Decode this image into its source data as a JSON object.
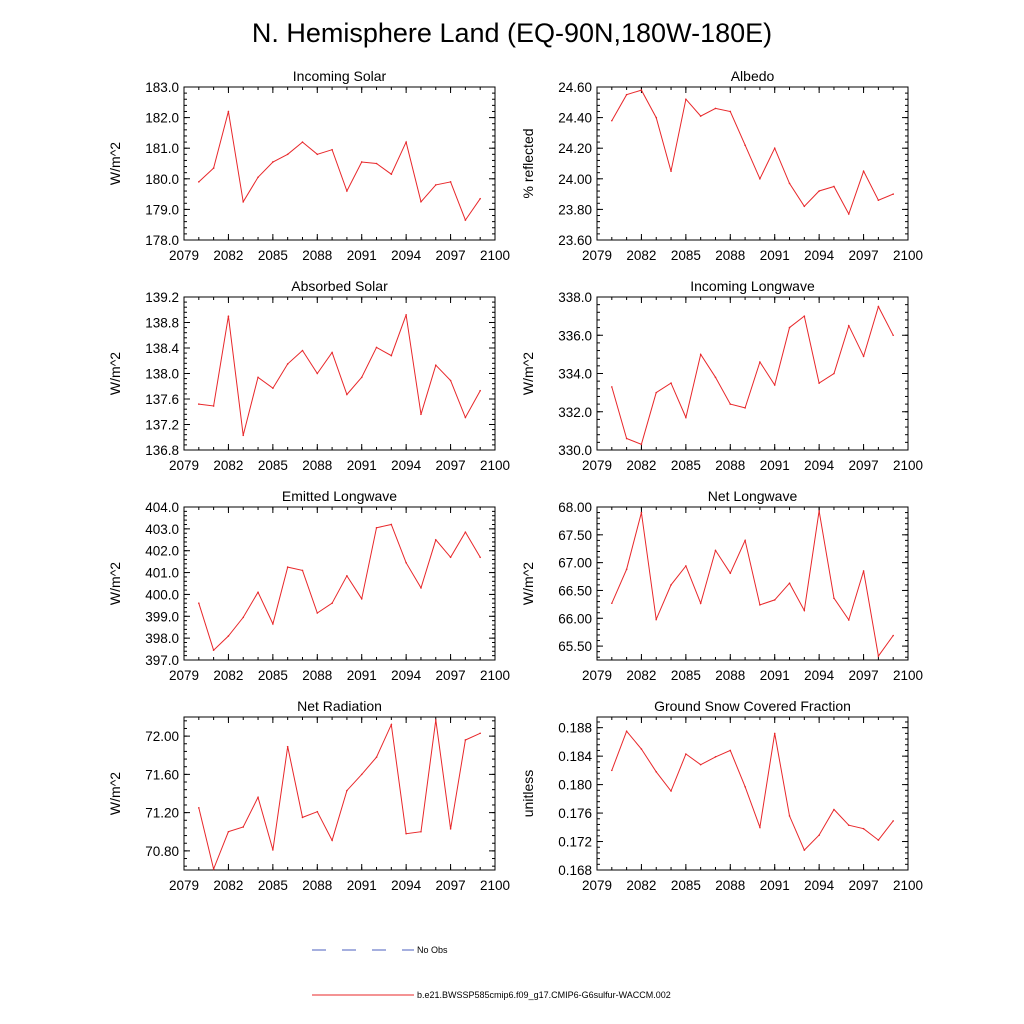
{
  "title": "N. Hemisphere Land (EQ-90N,180W-180E)",
  "legend": {
    "no_obs_label": "No Obs",
    "no_obs_color": "#4b5fbf",
    "model_label": "b.e21.BWSSP585cmip6.f09_g17.CMIP6-G6sulfur-WACCM.002",
    "model_color": "#e8272a"
  },
  "chart_data": [
    {
      "type": "line",
      "title": "Incoming Solar",
      "ylabel": "W/m^2",
      "x": [
        2080,
        2081,
        2082,
        2083,
        2084,
        2085,
        2086,
        2087,
        2088,
        2089,
        2090,
        2091,
        2092,
        2093,
        2094,
        2095,
        2096,
        2097,
        2098,
        2099
      ],
      "values": [
        179.9,
        180.35,
        182.2,
        179.25,
        180.05,
        180.55,
        180.8,
        181.2,
        180.8,
        180.95,
        179.6,
        180.55,
        180.5,
        180.15,
        181.2,
        179.25,
        179.8,
        179.9,
        178.65,
        179.35
      ],
      "xlim": [
        2079,
        2100
      ],
      "xticks": [
        "2079",
        "2082",
        "2085",
        "2088",
        "2091",
        "2094",
        "2097",
        "2100"
      ],
      "ylim": [
        178.0,
        183.0
      ],
      "yticks": [
        "178.0",
        "179.0",
        "180.0",
        "181.0",
        "182.0",
        "183.0"
      ],
      "color": "#e8272a"
    },
    {
      "type": "line",
      "title": "Albedo",
      "ylabel": "% reflected",
      "x": [
        2080,
        2081,
        2082,
        2083,
        2084,
        2085,
        2086,
        2087,
        2088,
        2089,
        2090,
        2091,
        2092,
        2093,
        2094,
        2095,
        2096,
        2097,
        2098,
        2099
      ],
      "values": [
        24.38,
        24.55,
        24.58,
        24.4,
        24.05,
        24.52,
        24.41,
        24.46,
        24.44,
        24.22,
        24.0,
        24.2,
        23.97,
        23.82,
        23.92,
        23.95,
        23.77,
        24.05,
        23.86,
        23.9
      ],
      "xlim": [
        2079,
        2100
      ],
      "xticks": [
        "2079",
        "2082",
        "2085",
        "2088",
        "2091",
        "2094",
        "2097",
        "2100"
      ],
      "ylim": [
        23.6,
        24.6
      ],
      "yticks": [
        "23.60",
        "23.80",
        "24.00",
        "24.20",
        "24.40",
        "24.60"
      ],
      "color": "#e8272a"
    },
    {
      "type": "line",
      "title": "Absorbed Solar",
      "ylabel": "W/m^2",
      "x": [
        2080,
        2081,
        2082,
        2083,
        2084,
        2085,
        2086,
        2087,
        2088,
        2089,
        2090,
        2091,
        2092,
        2093,
        2094,
        2095,
        2096,
        2097,
        2098,
        2099
      ],
      "values": [
        137.52,
        137.49,
        138.9,
        137.03,
        137.94,
        137.77,
        138.15,
        138.36,
        138.0,
        138.33,
        137.67,
        137.94,
        138.41,
        138.28,
        138.92,
        137.36,
        138.13,
        137.89,
        137.31,
        137.73
      ],
      "xlim": [
        2079,
        2100
      ],
      "xticks": [
        "2079",
        "2082",
        "2085",
        "2088",
        "2091",
        "2094",
        "2097",
        "2100"
      ],
      "ylim": [
        136.8,
        139.2
      ],
      "yticks": [
        "136.8",
        "137.2",
        "137.6",
        "138.0",
        "138.4",
        "138.8",
        "139.2"
      ],
      "color": "#e8272a"
    },
    {
      "type": "line",
      "title": "Incoming Longwave",
      "ylabel": "W/m^2",
      "x": [
        2080,
        2081,
        2082,
        2083,
        2084,
        2085,
        2086,
        2087,
        2088,
        2089,
        2090,
        2091,
        2092,
        2093,
        2094,
        2095,
        2096,
        2097,
        2098,
        2099
      ],
      "values": [
        333.3,
        330.6,
        330.3,
        333.0,
        333.5,
        331.7,
        335.0,
        333.8,
        332.4,
        332.2,
        334.6,
        333.4,
        336.4,
        337.0,
        333.5,
        334.0,
        336.5,
        334.9,
        337.5,
        336.0
      ],
      "xlim": [
        2079,
        2100
      ],
      "xticks": [
        "2079",
        "2082",
        "2085",
        "2088",
        "2091",
        "2094",
        "2097",
        "2100"
      ],
      "ylim": [
        330.0,
        338.0
      ],
      "yticks": [
        "330.0",
        "332.0",
        "334.0",
        "336.0",
        "338.0"
      ],
      "color": "#e8272a"
    },
    {
      "type": "line",
      "title": "Emitted Longwave",
      "ylabel": "W/m^2",
      "x": [
        2080,
        2081,
        2082,
        2083,
        2084,
        2085,
        2086,
        2087,
        2088,
        2089,
        2090,
        2091,
        2092,
        2093,
        2094,
        2095,
        2096,
        2097,
        2098,
        2099
      ],
      "values": [
        399.6,
        397.45,
        398.1,
        398.95,
        400.1,
        398.65,
        401.25,
        401.1,
        399.15,
        399.6,
        400.85,
        399.8,
        403.05,
        403.2,
        401.45,
        400.3,
        402.5,
        401.7,
        402.85,
        401.7
      ],
      "xlim": [
        2079,
        2100
      ],
      "xticks": [
        "2079",
        "2082",
        "2085",
        "2088",
        "2091",
        "2094",
        "2097",
        "2100"
      ],
      "ylim": [
        397.0,
        404.0
      ],
      "yticks": [
        "397.0",
        "398.0",
        "399.0",
        "400.0",
        "401.0",
        "402.0",
        "403.0",
        "404.0"
      ],
      "color": "#e8272a"
    },
    {
      "type": "line",
      "title": "Net Longwave",
      "ylabel": "W/m^2",
      "x": [
        2080,
        2081,
        2082,
        2083,
        2084,
        2085,
        2086,
        2087,
        2088,
        2089,
        2090,
        2091,
        2092,
        2093,
        2094,
        2095,
        2096,
        2097,
        2098,
        2099
      ],
      "values": [
        66.27,
        66.88,
        67.9,
        65.98,
        66.6,
        66.94,
        66.27,
        67.22,
        66.81,
        67.4,
        66.24,
        66.33,
        66.63,
        66.14,
        67.93,
        66.36,
        65.97,
        66.85,
        65.32,
        65.69
      ],
      "xlim": [
        2079,
        2100
      ],
      "xticks": [
        "2079",
        "2082",
        "2085",
        "2088",
        "2091",
        "2094",
        "2097",
        "2100"
      ],
      "ylim": [
        65.25,
        68.0
      ],
      "yticks": [
        "65.50",
        "66.00",
        "66.50",
        "67.00",
        "67.50",
        "68.00"
      ],
      "color": "#e8272a"
    },
    {
      "type": "line",
      "title": "Net Radiation",
      "ylabel": "W/m^2",
      "x": [
        2080,
        2081,
        2082,
        2083,
        2084,
        2085,
        2086,
        2087,
        2088,
        2089,
        2090,
        2091,
        2092,
        2093,
        2094,
        2095,
        2096,
        2097,
        2098,
        2099
      ],
      "values": [
        71.25,
        70.61,
        71.0,
        71.05,
        71.36,
        70.81,
        71.89,
        71.15,
        71.21,
        70.91,
        71.43,
        71.6,
        71.78,
        72.12,
        70.98,
        71.0,
        72.17,
        71.03,
        71.96,
        72.03
      ],
      "xlim": [
        2079,
        2100
      ],
      "xticks": [
        "2079",
        "2082",
        "2085",
        "2088",
        "2091",
        "2094",
        "2097",
        "2100"
      ],
      "ylim": [
        70.6,
        72.2
      ],
      "yticks": [
        "70.80",
        "71.20",
        "71.60",
        "72.00"
      ],
      "color": "#e8272a"
    },
    {
      "type": "line",
      "title": "Ground Snow Covered Fraction",
      "ylabel": "unitless",
      "x": [
        2080,
        2081,
        2082,
        2083,
        2084,
        2085,
        2086,
        2087,
        2088,
        2089,
        2090,
        2091,
        2092,
        2093,
        2094,
        2095,
        2096,
        2097,
        2098,
        2099
      ],
      "values": [
        0.182,
        0.1875,
        0.185,
        0.1818,
        0.1791,
        0.1843,
        0.1828,
        0.1839,
        0.1848,
        0.1797,
        0.174,
        0.1872,
        0.1756,
        0.1708,
        0.1729,
        0.1765,
        0.1743,
        0.1738,
        0.1722,
        0.1749
      ],
      "xlim": [
        2079,
        2100
      ],
      "xticks": [
        "2079",
        "2082",
        "2085",
        "2088",
        "2091",
        "2094",
        "2097",
        "2100"
      ],
      "ylim": [
        0.168,
        0.1895
      ],
      "yticks": [
        "0.168",
        "0.172",
        "0.176",
        "0.180",
        "0.184",
        "0.188"
      ],
      "color": "#e8272a"
    }
  ]
}
